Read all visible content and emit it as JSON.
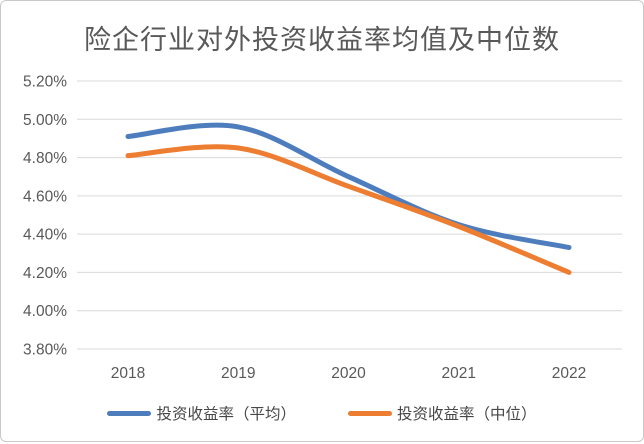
{
  "title": "险企行业对外投资收益率均值及中位数",
  "chart_data": {
    "type": "line",
    "smooth": true,
    "title": "险企行业对外投资收益率均值及中位数",
    "categories": [
      "2018",
      "2019",
      "2020",
      "2021",
      "2022"
    ],
    "series": [
      {
        "name": "投资收益率（平均）",
        "color": "#4E7DBE",
        "values": [
          4.91,
          4.96,
          4.7,
          4.45,
          4.33
        ]
      },
      {
        "name": "投资收益率（中位）",
        "color": "#ED7D31",
        "values": [
          4.81,
          4.85,
          4.65,
          4.44,
          4.2
        ]
      }
    ],
    "y_axis": {
      "min": 3.8,
      "max": 5.2,
      "step": 0.2,
      "tick_labels": [
        "5.20%",
        "5.00%",
        "4.80%",
        "4.60%",
        "4.40%",
        "4.20%",
        "4.00%",
        "3.80%"
      ]
    },
    "xlabel": "",
    "ylabel": "",
    "grid": true,
    "gridline_color": "#d9d9d9",
    "legend_position": "bottom"
  }
}
